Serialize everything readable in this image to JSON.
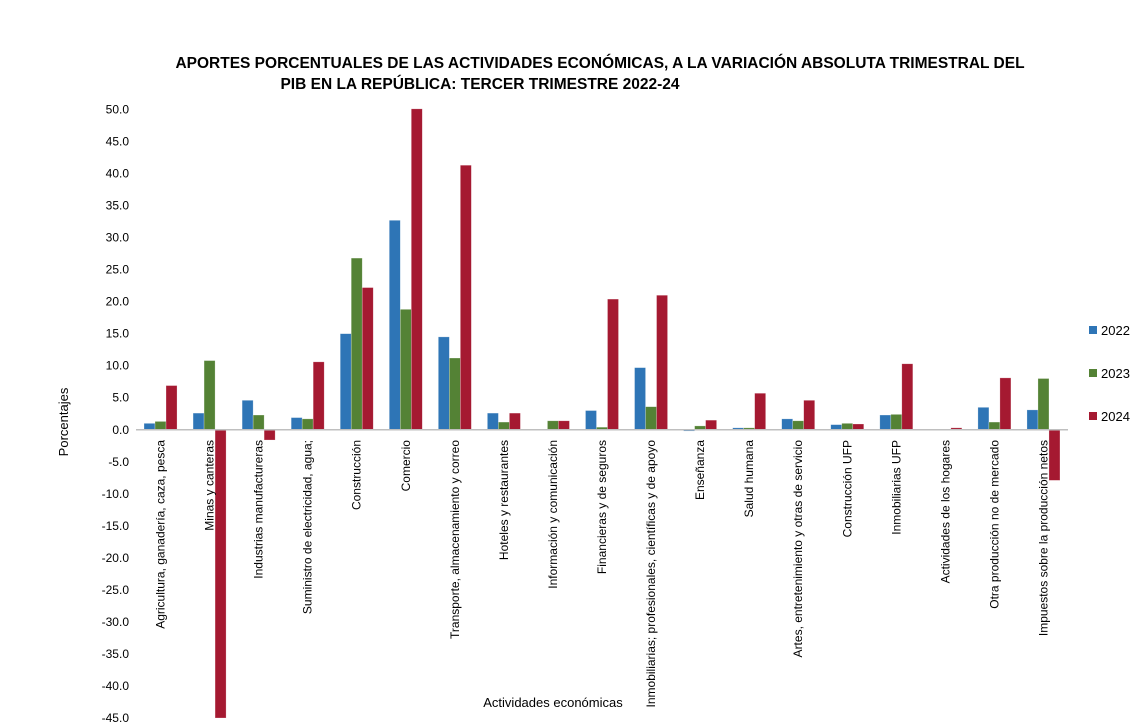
{
  "chart_data": {
    "type": "bar",
    "title": "APORTES PORCENTUALES DE LAS ACTIVIDADES ECONÓMICAS, A LA VARIACIÓN ABSOLUTA TRIMESTRAL  DEL",
    "title_line2": "PIB  EN LA  REPÚBLICA: TERCER TRIMESTRE 2022-24",
    "xlabel": "Actividades económicas",
    "ylabel": "Porcentajes",
    "ylim": [
      -45,
      50
    ],
    "yticks": [
      "50.0",
      "45.0",
      "40.0",
      "35.0",
      "30.0",
      "25.0",
      "20.0",
      "15.0",
      "10.0",
      "5.0",
      "0.0",
      "-5.0",
      "-10.0",
      "-15.0",
      "-20.0",
      "-25.0",
      "-30.0",
      "-35.0",
      "-40.0",
      "-45.0"
    ],
    "legend_position": "right",
    "grid": false,
    "categories": [
      "Agricultura, ganadería, caza, pesca",
      "Minas y canteras",
      "Industrias manufactureras",
      "Suministro de electricidad, agua;",
      "Construcción",
      "Comercio",
      "Transporte, almacenamiento y correo",
      "Hoteles y restaurantes",
      "Información y comunicación",
      "Financieras y de seguros",
      "Inmobiliarias; profesionales, científicas y de apoyo",
      "Enseñanza",
      "Salud humana",
      "Artes, entretenimiento y  otras de servicio",
      "Construcción UFP",
      "Inmobiliarias UFP",
      "Actividades de los hogares",
      "Otra producción no de mercado",
      "Impuestos sobre la producción netos"
    ],
    "series": [
      {
        "name": "2022",
        "color": "#2e75b6",
        "values": [
          1.0,
          2.6,
          4.6,
          1.9,
          15.0,
          32.7,
          14.5,
          2.6,
          0.1,
          3.0,
          9.7,
          -0.2,
          0.3,
          1.7,
          0.8,
          2.3,
          0.1,
          3.5,
          3.1
        ]
      },
      {
        "name": "2023",
        "color": "#548235",
        "values": [
          1.3,
          10.8,
          2.3,
          1.7,
          26.8,
          18.8,
          11.2,
          1.2,
          1.4,
          0.4,
          3.6,
          0.6,
          0.3,
          1.4,
          1.0,
          2.4,
          0.0,
          1.2,
          8.0
        ]
      },
      {
        "name": "2024",
        "color": "#a51931",
        "values": [
          6.9,
          -45.0,
          -1.6,
          10.6,
          22.2,
          50.1,
          41.3,
          2.6,
          1.4,
          20.4,
          21.0,
          1.5,
          5.7,
          4.6,
          0.9,
          10.3,
          0.3,
          8.1,
          -7.9
        ]
      }
    ]
  }
}
